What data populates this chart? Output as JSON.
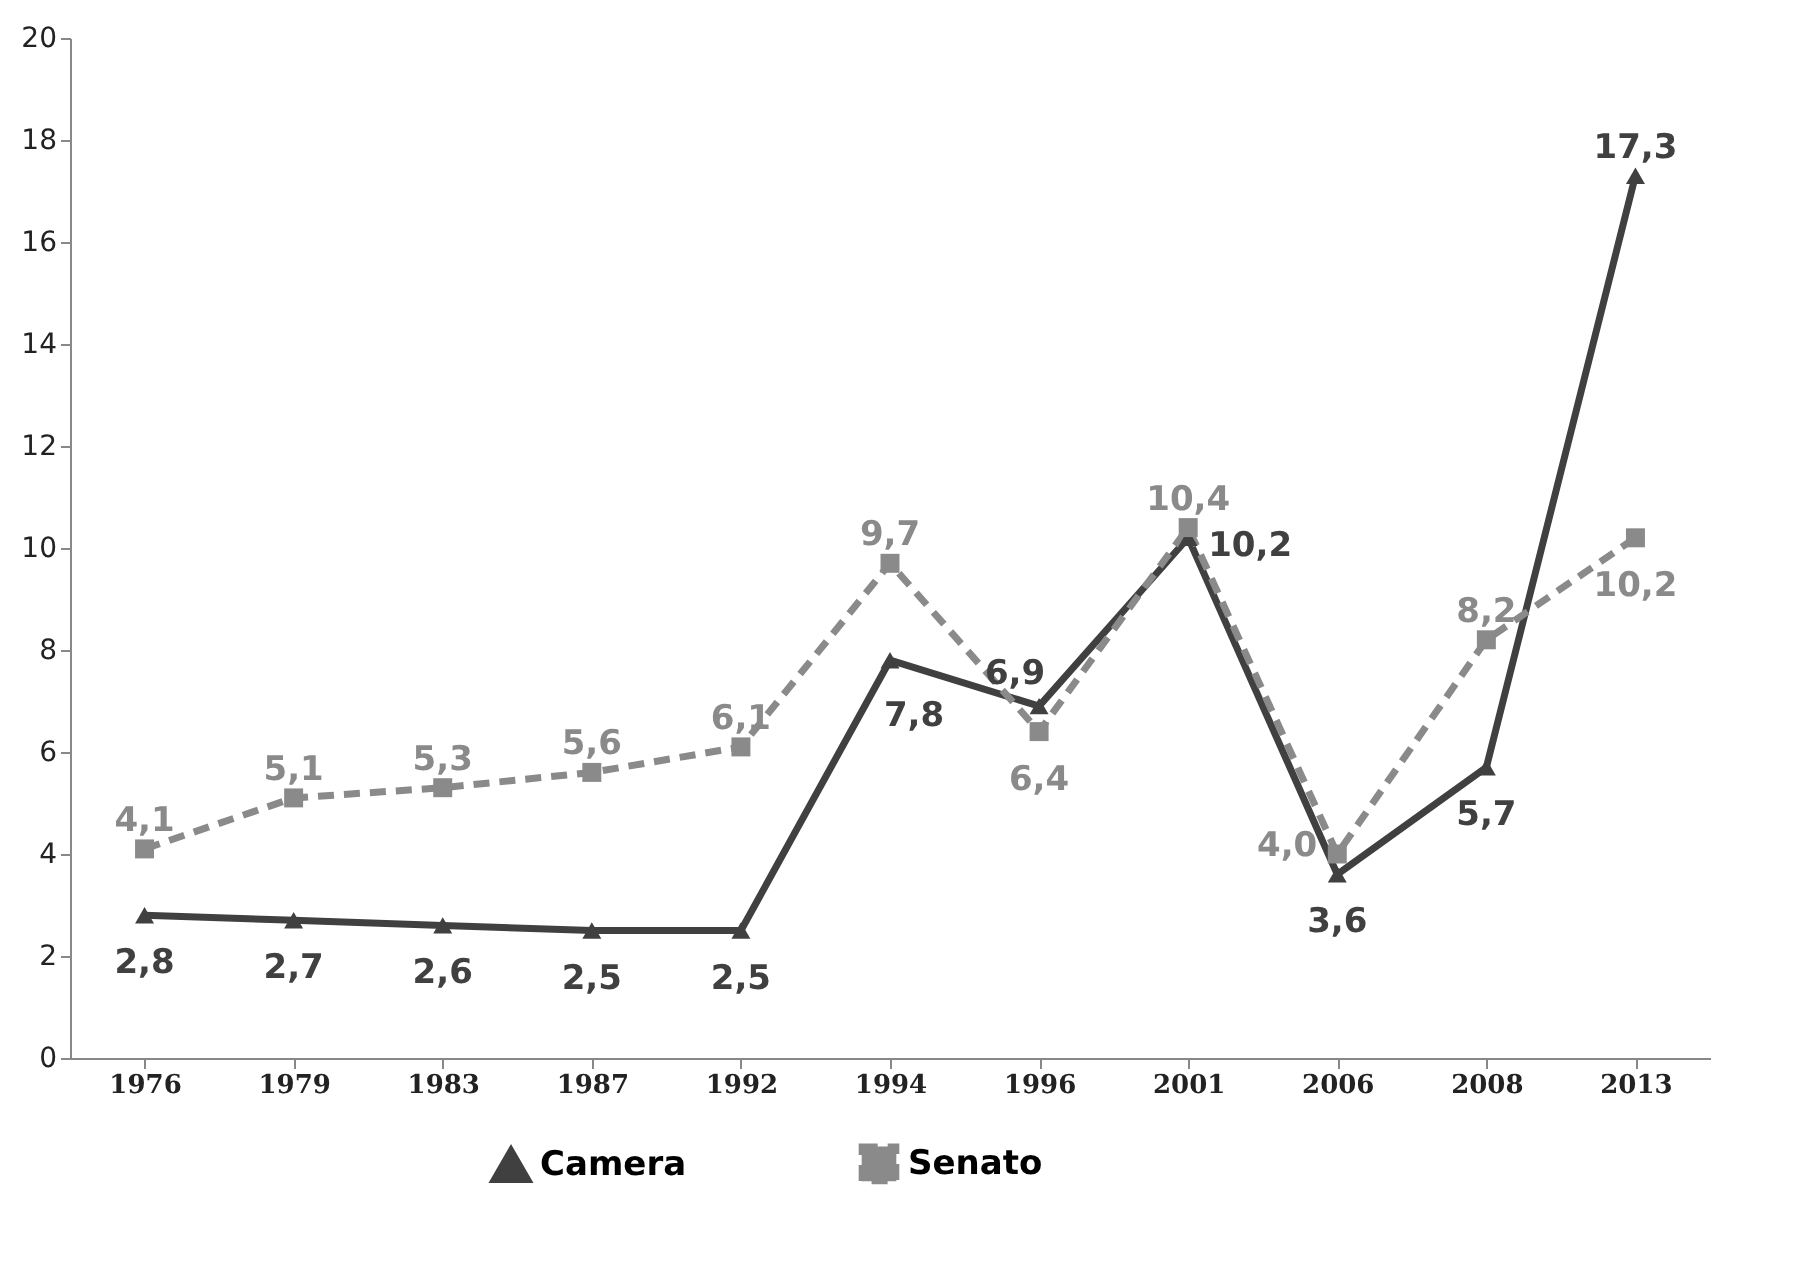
{
  "chart_data": {
    "type": "line",
    "categories": [
      "1976",
      "1979",
      "1983",
      "1987",
      "1992",
      "1994",
      "1996",
      "2001",
      "2006",
      "2008",
      "2013"
    ],
    "series": [
      {
        "name": "Camera",
        "color": "#404040",
        "marker": "triangle",
        "line_style": "solid",
        "values": [
          2.8,
          2.7,
          2.6,
          2.5,
          2.5,
          7.8,
          6.9,
          10.2,
          3.6,
          5.7,
          17.3
        ],
        "value_labels": [
          "2,8",
          "2,7",
          "2,6",
          "2,5",
          "2,5",
          "7,8",
          "6,9",
          "10,2",
          "3,6",
          "5,7",
          "17,3"
        ]
      },
      {
        "name": "Senato",
        "color": "#8a8a8a",
        "marker": "square",
        "line_style": "dashed",
        "values": [
          4.1,
          5.1,
          5.3,
          5.6,
          6.1,
          9.7,
          6.4,
          10.4,
          4.0,
          8.2,
          10.2
        ],
        "value_labels": [
          "4,1",
          "5,1",
          "5,3",
          "5,6",
          "6,1",
          "9,7",
          "6,4",
          "10,4",
          "4,0",
          "8,2",
          "10,2"
        ]
      }
    ],
    "ylim": [
      0,
      20
    ],
    "yticks": [
      0,
      2,
      4,
      6,
      8,
      10,
      12,
      14,
      16,
      18,
      20
    ],
    "grid": false,
    "legend": "bottom"
  }
}
